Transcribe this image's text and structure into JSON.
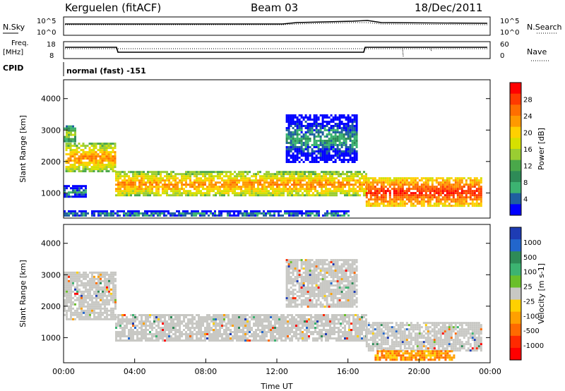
{
  "header": {
    "station": "Kerguelen (fitACF)",
    "beam": "Beam 03",
    "date": "18/Dec/2011"
  },
  "panels": {
    "nsky": {
      "label": "N.Sky",
      "ticks": [
        "10^5",
        "10^0"
      ],
      "right_ticks": [
        "10^5",
        "10^0"
      ],
      "right_label": "N.Search"
    },
    "freq": {
      "label_line1": "Freq.",
      "label_line2": "[MHz]",
      "ticks": [
        "18",
        "8"
      ],
      "right_ticks": [
        "60",
        "0"
      ],
      "right_label": "Nave"
    },
    "cpid": {
      "label": "CPID",
      "text": "normal (fast) -151"
    }
  },
  "chart_data": [
    {
      "type": "heatmap",
      "name": "power",
      "xlabel": "",
      "ylabel": "Slant Range [km]",
      "xlim": [
        0,
        24
      ],
      "ylim": [
        200,
        4600
      ],
      "yticks": [
        "4000",
        "3000",
        "2000",
        "1000"
      ],
      "colorbar": {
        "label": "Power [dB]",
        "ticks": [
          "28",
          "24",
          "20",
          "16",
          "12",
          "8",
          "4"
        ],
        "colors": [
          "#ff0000",
          "#ff3a00",
          "#ff6e00",
          "#ff9900",
          "#ffd000",
          "#d6e000",
          "#9acd32",
          "#4aa84a",
          "#2e8b57",
          "#3cb371",
          "#1f5fa0",
          "#0000ff"
        ]
      },
      "bands": [
        {
          "t0": 0.0,
          "t1": 0.6,
          "r0": 2650,
          "r1": 3150,
          "level": "mid"
        },
        {
          "t0": 0.1,
          "t1": 2.9,
          "r0": 1700,
          "r1": 2600,
          "level": "high"
        },
        {
          "t0": 0.0,
          "t1": 1.2,
          "r0": 850,
          "r1": 1250,
          "level": "low"
        },
        {
          "t0": 2.9,
          "t1": 17.0,
          "r0": 900,
          "r1": 1700,
          "level": "high"
        },
        {
          "t0": 12.5,
          "t1": 16.5,
          "r0": 2000,
          "r1": 3500,
          "level": "low"
        },
        {
          "t0": 17.0,
          "t1": 23.5,
          "r0": 600,
          "r1": 1500,
          "level": "max"
        },
        {
          "t0": 0.0,
          "t1": 16.0,
          "r0": 250,
          "r1": 450,
          "level": "low"
        }
      ]
    },
    {
      "type": "heatmap",
      "name": "velocity",
      "xlabel": "Time UT",
      "ylabel": "Slant Range [km]",
      "xlim": [
        0,
        24
      ],
      "ylim": [
        200,
        4600
      ],
      "xticks": [
        "00:00",
        "04:00",
        "08:00",
        "12:00",
        "16:00",
        "20:00",
        "00:00"
      ],
      "yticks": [
        "4000",
        "3000",
        "2000",
        "1000"
      ],
      "colorbar": {
        "label": "Velocity [m s-1]",
        "ticks": [
          "1000",
          "500",
          "100",
          "25",
          "-25",
          "-100",
          "-500",
          "-1000"
        ],
        "colors": [
          "#1e3cb4",
          "#2266cc",
          "#2e8b57",
          "#3cb371",
          "#6abf2a",
          "#c8c8c4",
          "#ffd000",
          "#ffa000",
          "#ff6a00",
          "#ff2a00",
          "#ff0000"
        ]
      },
      "bands": [
        {
          "t0": 0.0,
          "t1": 2.9,
          "r0": 1600,
          "r1": 3100,
          "level": "ground"
        },
        {
          "t0": 2.9,
          "t1": 17.0,
          "r0": 900,
          "r1": 1750,
          "level": "ground"
        },
        {
          "t0": 12.5,
          "t1": 16.5,
          "r0": 2000,
          "r1": 3500,
          "level": "ground"
        },
        {
          "t0": 17.0,
          "t1": 23.5,
          "r0": 600,
          "r1": 1500,
          "level": "ground"
        },
        {
          "t0": 17.5,
          "t1": 22.0,
          "r0": 300,
          "r1": 600,
          "level": "negative"
        }
      ]
    }
  ]
}
